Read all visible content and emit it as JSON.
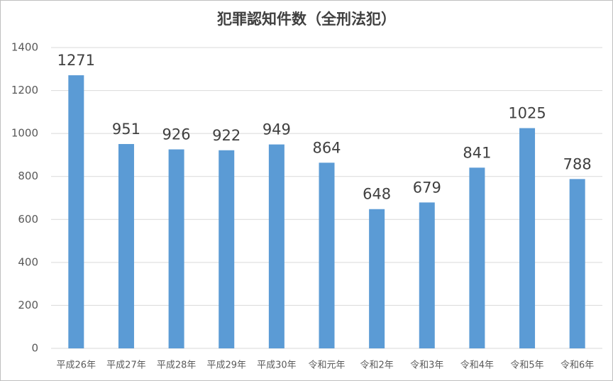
{
  "chart_data": {
    "type": "bar",
    "title": "犯罪認知件数（全刑法犯）",
    "categories": [
      "平成26年",
      "平成27年",
      "平成28年",
      "平成29年",
      "平成30年",
      "令和元年",
      "令和2年",
      "令和3年",
      "令和4年",
      "令和5年",
      "令和6年"
    ],
    "values": [
      1271,
      951,
      926,
      922,
      949,
      864,
      648,
      679,
      841,
      1025,
      788
    ],
    "color": "#5b9bd5",
    "ylim": [
      0,
      1400
    ],
    "yticks": [
      0,
      200,
      400,
      600,
      800,
      1000,
      1200,
      1400
    ],
    "grid": true
  }
}
